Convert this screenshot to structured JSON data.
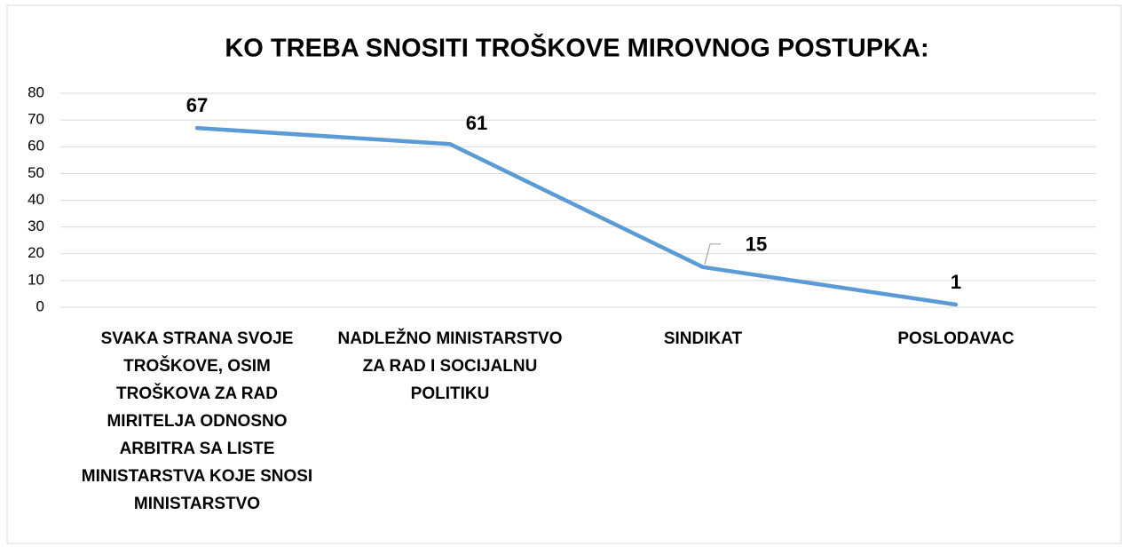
{
  "chart_data": {
    "type": "line",
    "title": "KO TREBA SNOSITI TROŠKOVE MIROVNOG POSTUPKA:",
    "categories": [
      "SVAKA STRANA SVOJE TROŠKOVE, OSIM TROŠKOVA ZA RAD MIRITELJA ODNOSNO ARBITRA SA LISTE MINISTARSTVA KOJE SNOSI MINISTARSTVO",
      "NADLEŽNO MINISTARSTVO ZA RAD I SOCIJALNU POLITIKU",
      "SINDIKAT",
      "POSLODAVAC"
    ],
    "values": [
      67,
      61,
      15,
      1
    ],
    "color": "#5b9bd5",
    "ylim": [
      0,
      80
    ],
    "yticks": [
      0,
      10,
      20,
      30,
      40,
      50,
      60,
      70,
      80
    ],
    "grid": true
  }
}
